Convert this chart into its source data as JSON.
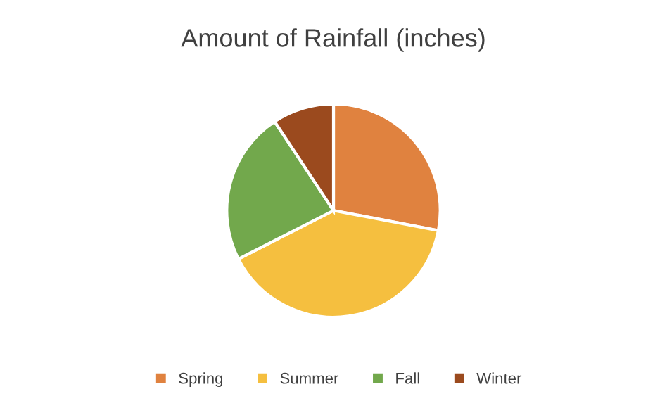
{
  "chart_data": {
    "type": "pie",
    "title": "Amount of Rainfall (inches)",
    "categories": [
      "Spring",
      "Summer",
      "Fall",
      "Winter"
    ],
    "values": [
      28,
      39.5,
      23.2,
      9.3
    ],
    "colors": [
      "#e0823f",
      "#f5bf3f",
      "#72a84c",
      "#9b4a1e"
    ],
    "legend": "bottom"
  }
}
